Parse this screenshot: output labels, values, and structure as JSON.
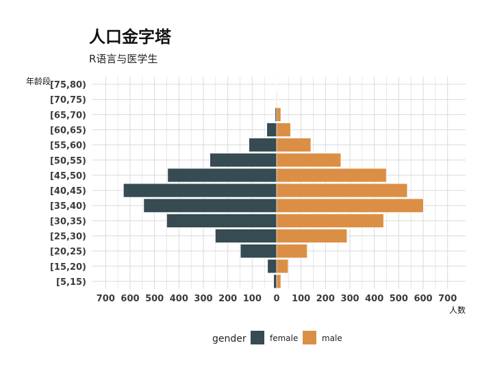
{
  "chart_data": {
    "type": "bar",
    "orientation": "horizontal",
    "title": "人口金字塔",
    "subtitle": "R语言与医学生",
    "ylabel": "年龄段",
    "xlabel": "人数",
    "categories": [
      "[5,15)",
      "[15,20)",
      "[20,25)",
      "[25,30)",
      "[30,35)",
      "[35,40)",
      "[40,45)",
      "[45,50)",
      "[50,55)",
      "[55,60)",
      "[60,65)",
      "[65,70)",
      "[70,75)",
      "[75,80)"
    ],
    "x_ticks": [
      -700,
      -600,
      -500,
      -400,
      -300,
      -200,
      -100,
      0,
      100,
      200,
      300,
      400,
      500,
      600,
      700
    ],
    "x_tick_labels": [
      "700",
      "600",
      "500",
      "400",
      "300",
      "200",
      "100",
      "0",
      "100",
      "200",
      "300",
      "400",
      "500",
      "600",
      "700"
    ],
    "xlim": [
      -750,
      750
    ],
    "grid": true,
    "series": [
      {
        "name": "female",
        "color": "#364B52",
        "values": [
          -12,
          -37,
          -148,
          -251,
          -450,
          -544,
          -627,
          -446,
          -273,
          -113,
          -40,
          -6,
          -2,
          -1
        ]
      },
      {
        "name": "male",
        "color": "#DB8F44",
        "values": [
          17,
          47,
          125,
          288,
          438,
          601,
          535,
          449,
          263,
          140,
          57,
          17,
          2,
          1
        ]
      }
    ],
    "legend": {
      "title": "gender",
      "position": "bottom",
      "entries": [
        "female",
        "male"
      ]
    }
  }
}
